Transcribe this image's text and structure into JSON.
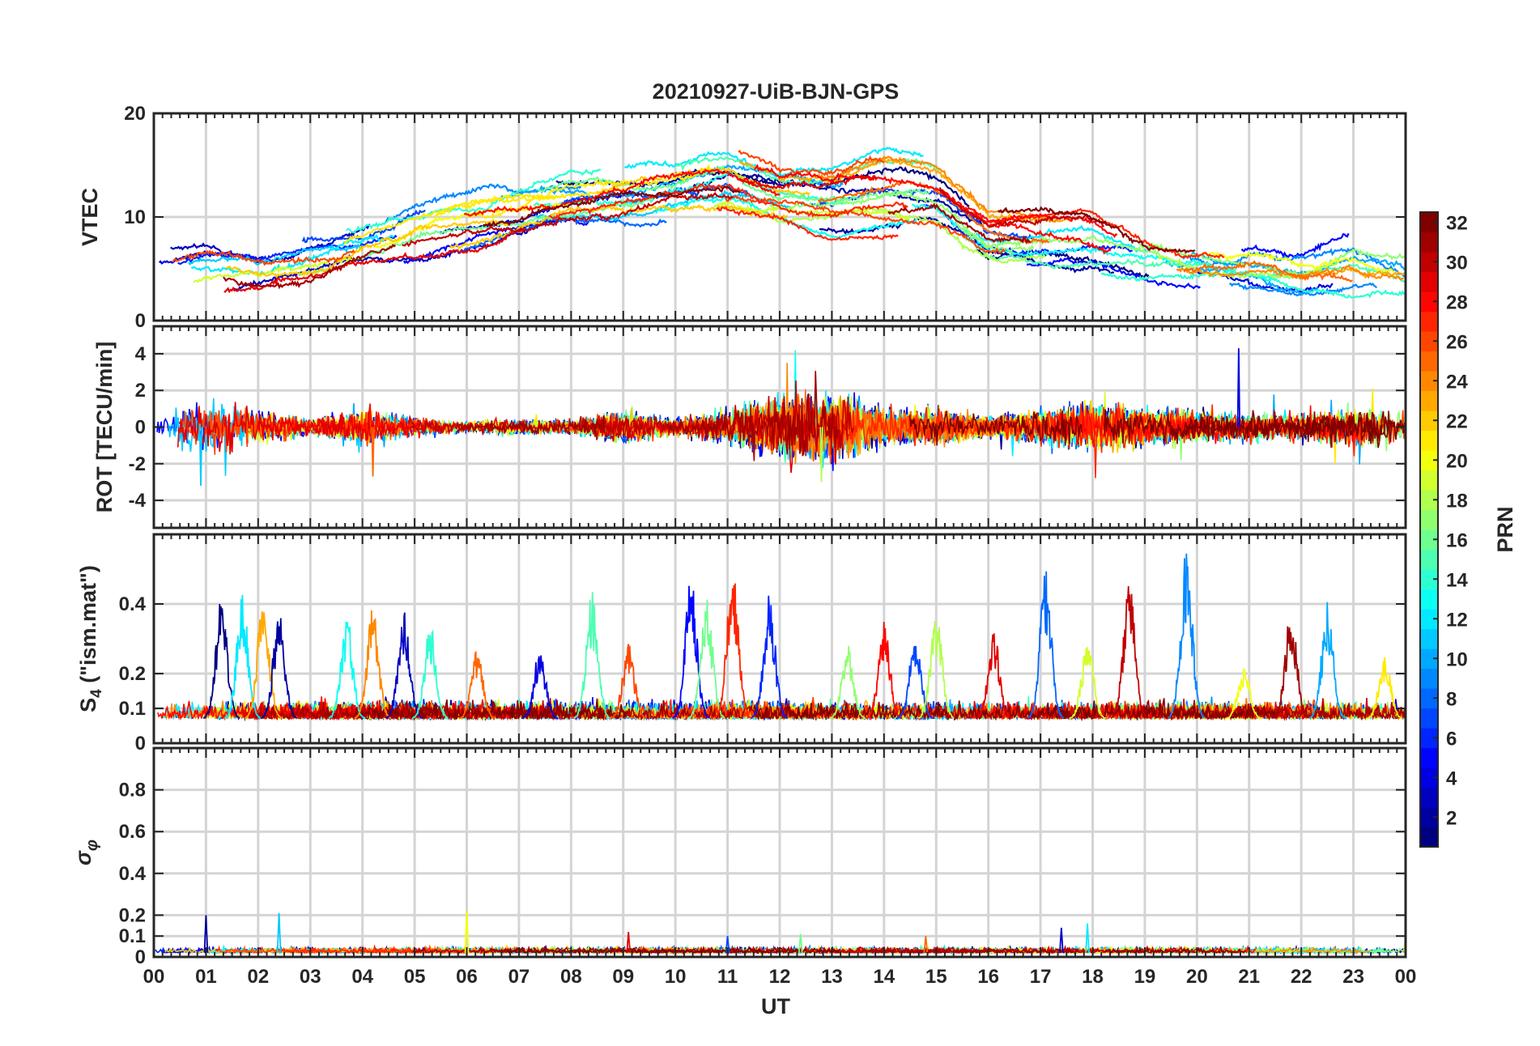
{
  "title": "20210927-UiB-BJN-GPS",
  "xlabel": "UT",
  "colorbar": {
    "label": "PRN",
    "min": 1,
    "max": 32,
    "ticks": [
      "2",
      "4",
      "6",
      "8",
      "10",
      "12",
      "14",
      "16",
      "18",
      "20",
      "22",
      "24",
      "26",
      "28",
      "30",
      "32"
    ]
  },
  "chart_data": [
    {
      "type": "line",
      "panel": "vtec",
      "ylabel": "VTEC",
      "ylim": [
        0,
        20
      ],
      "yticks": [
        "0",
        "10",
        "20"
      ],
      "xlim": [
        0,
        24
      ],
      "xticks": [
        "00",
        "01",
        "02",
        "03",
        "04",
        "05",
        "06",
        "07",
        "08",
        "09",
        "10",
        "11",
        "12",
        "13",
        "14",
        "15",
        "16",
        "17",
        "18",
        "19",
        "20",
        "21",
        "22",
        "23",
        "00"
      ],
      "grid": true,
      "series_count": 32,
      "series_color": "PRN (jet colormap)",
      "envelope": {
        "x": [
          0,
          1,
          2,
          3,
          4,
          5,
          6,
          7,
          8,
          9,
          10,
          11,
          12,
          13,
          14,
          15,
          16,
          17,
          18,
          19,
          20,
          21,
          22,
          23,
          24
        ],
        "y_min": [
          3,
          3,
          3,
          3.5,
          5,
          6,
          7,
          8,
          9,
          9,
          10,
          10,
          9,
          8,
          8,
          8,
          5,
          5,
          5,
          4.5,
          4,
          4,
          3,
          3,
          3
        ],
        "y_max": [
          7,
          8.5,
          7,
          8,
          9,
          10.5,
          12,
          13,
          14,
          14.5,
          15,
          16.8,
          15,
          15,
          16,
          15,
          11,
          11,
          10,
          8,
          7.5,
          7,
          6,
          8,
          6
        ]
      }
    },
    {
      "type": "line",
      "panel": "rot",
      "ylabel": "ROT [TECU/min]",
      "ylim": [
        -5.5,
        5.5
      ],
      "yticks": [
        "-4",
        "-2",
        "0",
        "2",
        "4"
      ],
      "xlim": [
        0,
        24
      ],
      "grid": true,
      "noise_amplitude": {
        "x": [
          0,
          1,
          2,
          3,
          4,
          5,
          6,
          7,
          8,
          9,
          10,
          11,
          12,
          13,
          14,
          15,
          16,
          17,
          18,
          19,
          20,
          21,
          22,
          23,
          24
        ],
        "amp": [
          0.8,
          2.0,
          1.2,
          0.7,
          1.3,
          0.7,
          0.4,
          0.6,
          0.5,
          1.2,
          0.6,
          1.2,
          2.5,
          2.5,
          1.3,
          1.3,
          0.8,
          1.2,
          1.8,
          1.3,
          1.2,
          1.0,
          1.0,
          1.5,
          1.2
        ]
      },
      "extremes": [
        {
          "x": 20.8,
          "y": 4.3
        },
        {
          "x": 0.9,
          "y": -3.2
        },
        {
          "x": 12.8,
          "y": -3.0
        },
        {
          "x": 4.2,
          "y": -2.7
        }
      ]
    },
    {
      "type": "line",
      "panel": "s4",
      "ylabel": "S4 (\"ism.mat\")",
      "ylim": [
        0,
        0.6
      ],
      "yticks": [
        "0",
        "0.1",
        "0.2",
        "0.4"
      ],
      "xlim": [
        0,
        24
      ],
      "grid": true,
      "baseline": 0.07,
      "peaks": [
        {
          "x": 1.3,
          "y": 0.42
        },
        {
          "x": 1.7,
          "y": 0.43
        },
        {
          "x": 2.1,
          "y": 0.44
        },
        {
          "x": 2.4,
          "y": 0.39
        },
        {
          "x": 3.7,
          "y": 0.38
        },
        {
          "x": 4.2,
          "y": 0.4
        },
        {
          "x": 4.8,
          "y": 0.4
        },
        {
          "x": 5.3,
          "y": 0.35
        },
        {
          "x": 6.2,
          "y": 0.28
        },
        {
          "x": 7.4,
          "y": 0.28
        },
        {
          "x": 8.4,
          "y": 0.44
        },
        {
          "x": 9.1,
          "y": 0.3
        },
        {
          "x": 10.3,
          "y": 0.49
        },
        {
          "x": 10.6,
          "y": 0.44
        },
        {
          "x": 11.1,
          "y": 0.51
        },
        {
          "x": 11.8,
          "y": 0.44
        },
        {
          "x": 13.3,
          "y": 0.29
        },
        {
          "x": 14.0,
          "y": 0.36
        },
        {
          "x": 14.6,
          "y": 0.32
        },
        {
          "x": 15.0,
          "y": 0.39
        },
        {
          "x": 16.1,
          "y": 0.33
        },
        {
          "x": 17.1,
          "y": 0.5
        },
        {
          "x": 17.9,
          "y": 0.31
        },
        {
          "x": 18.7,
          "y": 0.49
        },
        {
          "x": 19.8,
          "y": 0.56
        },
        {
          "x": 20.9,
          "y": 0.23
        },
        {
          "x": 21.8,
          "y": 0.4
        },
        {
          "x": 22.5,
          "y": 0.41
        },
        {
          "x": 23.6,
          "y": 0.26
        }
      ]
    },
    {
      "type": "line",
      "panel": "sigma-phi",
      "ylabel": "σφ",
      "ylim": [
        0,
        1
      ],
      "yticks": [
        "0",
        "0.1",
        "0.2",
        "0.4",
        "0.6",
        "0.8"
      ],
      "xlim": [
        0,
        24
      ],
      "grid": true,
      "baseline": 0.02,
      "peaks": [
        {
          "x": 1.0,
          "y": 0.2
        },
        {
          "x": 2.4,
          "y": 0.21
        },
        {
          "x": 6.0,
          "y": 0.22
        },
        {
          "x": 9.1,
          "y": 0.12
        },
        {
          "x": 11.0,
          "y": 0.1
        },
        {
          "x": 12.4,
          "y": 0.11
        },
        {
          "x": 14.8,
          "y": 0.1
        },
        {
          "x": 17.4,
          "y": 0.14
        },
        {
          "x": 17.9,
          "y": 0.16
        },
        {
          "x": 24.0,
          "y": 0.11
        }
      ]
    }
  ]
}
